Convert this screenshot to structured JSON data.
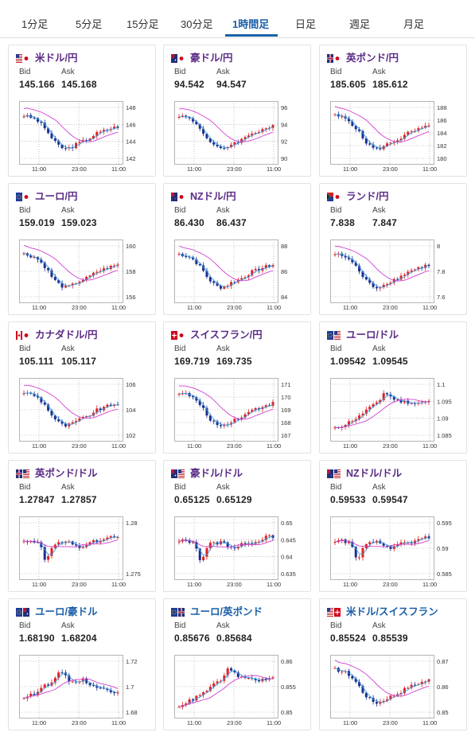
{
  "tabs": [
    {
      "label": "1分足"
    },
    {
      "label": "5分足"
    },
    {
      "label": "15分足"
    },
    {
      "label": "30分足"
    },
    {
      "label": "1時間足"
    },
    {
      "label": "日足"
    },
    {
      "label": "週足"
    },
    {
      "label": "月足"
    }
  ],
  "active_tab": "1時間足",
  "labels": {
    "bid": "Bid",
    "ask": "Ask"
  },
  "cards": [
    {
      "pair": "米ドル/円",
      "bid": "145.166",
      "ask": "145.168",
      "flag": "us-jp",
      "pair_color": "#5b2b86",
      "yticks": [
        "148",
        "146",
        "144",
        "142"
      ],
      "xticks": [
        "11:00",
        "23:00",
        "11:00"
      ]
    },
    {
      "pair": "豪ドル/円",
      "bid": "94.542",
      "ask": "94.547",
      "flag": "au-jp",
      "pair_color": "#5b2b86",
      "yticks": [
        "96",
        "94",
        "92",
        "90"
      ],
      "xticks": [
        "11:00",
        "23:00",
        "11:00"
      ]
    },
    {
      "pair": "英ポンド/円",
      "bid": "185.605",
      "ask": "185.612",
      "flag": "gb-jp",
      "pair_color": "#5b2b86",
      "yticks": [
        "188",
        "186",
        "184",
        "182",
        "180"
      ],
      "xticks": [
        "11:00",
        "23:00",
        "11:00"
      ]
    },
    {
      "pair": "ユーロ/円",
      "bid": "159.019",
      "ask": "159.023",
      "flag": "eu-jp",
      "pair_color": "#5b2b86",
      "yticks": [
        "160",
        "158",
        "156"
      ],
      "xticks": [
        "11:00",
        "23:00",
        "11:00"
      ]
    },
    {
      "pair": "NZドル/円",
      "bid": "86.430",
      "ask": "86.437",
      "flag": "nz-jp",
      "pair_color": "#5b2b86",
      "yticks": [
        "88",
        "86",
        "84"
      ],
      "xticks": [
        "11:00",
        "23:00",
        "11:00"
      ]
    },
    {
      "pair": "ランド/円",
      "bid": "7.838",
      "ask": "7.847",
      "flag": "za-jp",
      "pair_color": "#5b2b86",
      "yticks": [
        "8",
        "7.8",
        "7.6"
      ],
      "xticks": [
        "11:00",
        "23:00",
        "11:00"
      ]
    },
    {
      "pair": "カナダドル/円",
      "bid": "105.111",
      "ask": "105.117",
      "flag": "ca-jp",
      "pair_color": "#5b2b86",
      "yticks": [
        "106",
        "104",
        "102"
      ],
      "xticks": [
        "11:00",
        "23:00",
        "11:00"
      ]
    },
    {
      "pair": "スイスフラン/円",
      "bid": "169.719",
      "ask": "169.735",
      "flag": "ch-jp",
      "pair_color": "#5b2b86",
      "yticks": [
        "171",
        "170",
        "169",
        "168",
        "167"
      ],
      "xticks": [
        "11:00",
        "23:00",
        "11:00"
      ]
    },
    {
      "pair": "ユーロ/ドル",
      "bid": "1.09542",
      "ask": "1.09545",
      "flag": "eu-us",
      "pair_color": "#5b2b86",
      "yticks": [
        "1.1",
        "1.095",
        "1.09",
        "1.085"
      ],
      "xticks": [
        "11:00",
        "23:00",
        "11:00"
      ]
    },
    {
      "pair": "英ポンド/ドル",
      "bid": "1.27847",
      "ask": "1.27857",
      "flag": "gb-us",
      "pair_color": "#5b2b86",
      "yticks": [
        "1.28",
        "1.275"
      ],
      "xticks": [
        "11:00",
        "23:00",
        "11:00"
      ]
    },
    {
      "pair": "豪ドル/ドル",
      "bid": "0.65125",
      "ask": "0.65129",
      "flag": "au-us",
      "pair_color": "#5b2b86",
      "yticks": [
        "0.65",
        "0.645",
        "0.64",
        "0.635"
      ],
      "xticks": [
        "11:00",
        "23:00",
        "11:00"
      ]
    },
    {
      "pair": "NZドル/ドル",
      "bid": "0.59533",
      "ask": "0.59547",
      "flag": "nz-us",
      "pair_color": "#5b2b86",
      "yticks": [
        "0.595",
        "0.59",
        "0.585"
      ],
      "xticks": [
        "11:00",
        "23:00",
        "11:00"
      ]
    },
    {
      "pair": "ユーロ/豪ドル",
      "bid": "1.68190",
      "ask": "1.68204",
      "flag": "eu-au",
      "pair_color": "#1a5fa8",
      "yticks": [
        "1.72",
        "1.7",
        "1.68"
      ],
      "xticks": [
        "11:00",
        "23:00",
        "11:00"
      ]
    },
    {
      "pair": "ユーロ/英ポンド",
      "bid": "0.85676",
      "ask": "0.85684",
      "flag": "eu-gb",
      "pair_color": "#1a5fa8",
      "yticks": [
        "0.86",
        "0.855",
        "0.85"
      ],
      "xticks": [
        "11:00",
        "23:00",
        "11:00"
      ]
    },
    {
      "pair": "米ドル/スイスフラン",
      "bid": "0.85524",
      "ask": "0.85539",
      "flag": "us-ch",
      "pair_color": "#1a5fa8",
      "yticks": [
        "0.87",
        "0.86",
        "0.85"
      ],
      "xticks": [
        "11:00",
        "23:00",
        "11:00"
      ]
    }
  ],
  "colors": {
    "up": "#e02020",
    "down": "#1b2f8e",
    "ma_short": "#3a9be0",
    "ma_long": "#d040d0",
    "grid": "#9a9a9a",
    "active_tab": "#1a5fa8"
  }
}
